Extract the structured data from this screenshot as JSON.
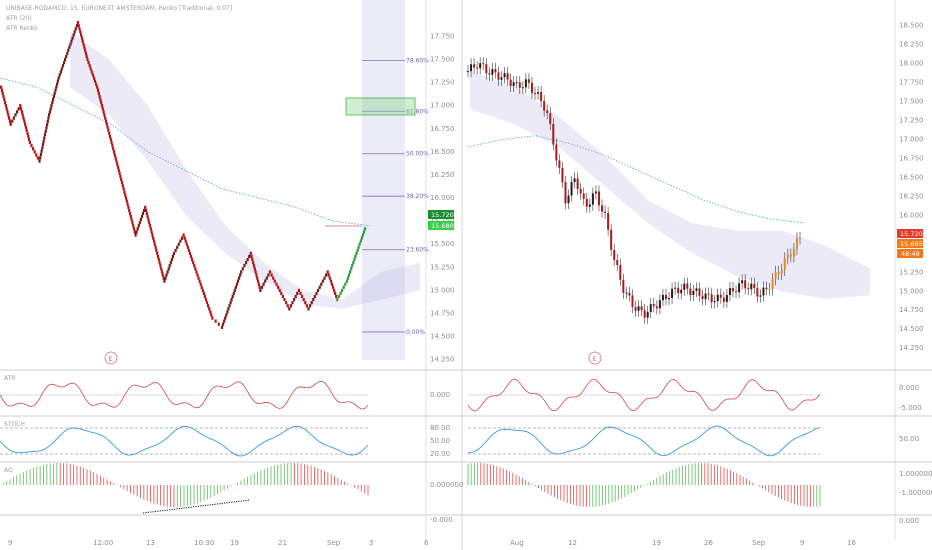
{
  "chart_data": {
    "type": "candlestick",
    "left": {
      "header_lines": [
        "UNIBASE-RODAMCO, 15, EURONEXT AMSTERDAM, Renko [Traditional, 0.07]",
        "ATR (20)",
        "ATR Renko"
      ],
      "price_ticks": [
        "17.750",
        "17.500",
        "17.250",
        "17.000",
        "16.750",
        "16.500",
        "16.250",
        "16.000",
        "15.750",
        "15.500",
        "15.250",
        "15.000",
        "14.750",
        "14.500",
        "14.250"
      ],
      "price_range": [
        14.3,
        17.95
      ],
      "fib_levels": [
        {
          "label": "78.60%",
          "price": 17.49
        },
        {
          "label": "61.80%",
          "price": 16.94
        },
        {
          "label": "50.00%",
          "price": 16.48
        },
        {
          "label": "38.20%",
          "price": 16.02
        },
        {
          "label": "23.60%",
          "price": 15.44
        },
        {
          "label": "0.00%",
          "price": 14.55
        }
      ],
      "last_price_tag": "15.720",
      "second_price_tag": "15.680",
      "time_labels": [
        "9",
        "12:00",
        "13",
        "10:30",
        "19",
        "21",
        "Sep",
        "3",
        "6"
      ],
      "event_marker": "E",
      "renko_path": [
        17.2,
        16.8,
        17.0,
        16.6,
        16.4,
        16.9,
        17.3,
        17.6,
        17.9,
        17.5,
        17.2,
        16.8,
        16.4,
        16.0,
        15.6,
        15.9,
        15.5,
        15.1,
        15.4,
        15.6,
        15.3,
        15.0,
        14.7,
        14.6,
        14.9,
        15.2,
        15.4,
        15.0,
        15.2,
        15.0,
        14.8,
        15.0,
        14.8,
        15.0,
        15.2,
        14.9,
        15.1,
        15.4,
        15.7
      ],
      "green_from_index": 34,
      "ma_path": [
        17.3,
        17.2,
        17.0,
        16.8,
        16.5,
        16.3,
        16.1,
        16.0,
        15.9,
        15.75,
        15.7
      ],
      "cloud_upper": [
        17.8,
        17.5,
        17.0,
        16.3,
        15.7,
        15.3,
        15.0,
        14.9,
        15.2,
        15.3
      ],
      "cloud_lower": [
        17.2,
        16.9,
        16.4,
        15.8,
        15.4,
        15.1,
        14.85,
        14.8,
        14.9,
        15.0
      ]
    },
    "right": {
      "price_ticks": [
        "18.500",
        "18.250",
        "18.000",
        "17.750",
        "17.500",
        "17.250",
        "17.000",
        "16.750",
        "16.500",
        "16.250",
        "16.000",
        "15.750",
        "15.500",
        "15.250",
        "15.000",
        "14.750",
        "14.500",
        "14.250"
      ],
      "price_range": [
        14.2,
        18.6
      ],
      "last_price_tag": "15.720",
      "second_price_tag": "15.665",
      "timer_tag": "48:49",
      "time_labels": [
        "Aug",
        "12",
        "19",
        "26",
        "Sep",
        "9",
        "16"
      ],
      "event_marker": "E",
      "close_path": [
        17.9,
        18.0,
        17.9,
        17.85,
        17.8,
        17.7,
        17.75,
        17.6,
        17.4,
        16.8,
        16.2,
        16.5,
        16.1,
        16.3,
        16.0,
        15.4,
        15.0,
        14.8,
        14.7,
        14.8,
        14.9,
        15.0,
        15.05,
        15.0,
        14.95,
        14.9,
        14.9,
        15.0,
        15.1,
        15.05,
        14.95,
        15.1,
        15.3,
        15.5,
        15.7
      ],
      "ma_path": [
        16.9,
        17.0,
        17.05,
        16.95,
        16.8,
        16.6,
        16.4,
        16.2,
        16.05,
        15.95,
        15.9
      ],
      "cloud_upper": [
        17.9,
        17.7,
        17.3,
        16.8,
        16.2,
        15.9,
        15.8,
        15.8,
        15.6,
        15.3
      ],
      "cloud_lower": [
        17.4,
        17.2,
        16.9,
        16.4,
        15.9,
        15.5,
        15.2,
        15.0,
        14.9,
        14.95
      ]
    },
    "indicators": {
      "panel1_label": "ATR",
      "panel2_label": "STOCH",
      "panel3_label": "AO",
      "left_panel1_ticks": [
        "0.000"
      ],
      "left_panel2_ticks": [
        "80.00",
        "50.00",
        "20.00"
      ],
      "left_panel3_ticks": [
        "0.000000",
        "-0.000"
      ],
      "right_panel1_ticks": [
        "0.000",
        "-5.000"
      ],
      "right_panel2_ticks": [
        "50.00"
      ],
      "right_panel3_ticks": [
        "1.000000",
        "-1.000000",
        "0.000"
      ]
    }
  }
}
